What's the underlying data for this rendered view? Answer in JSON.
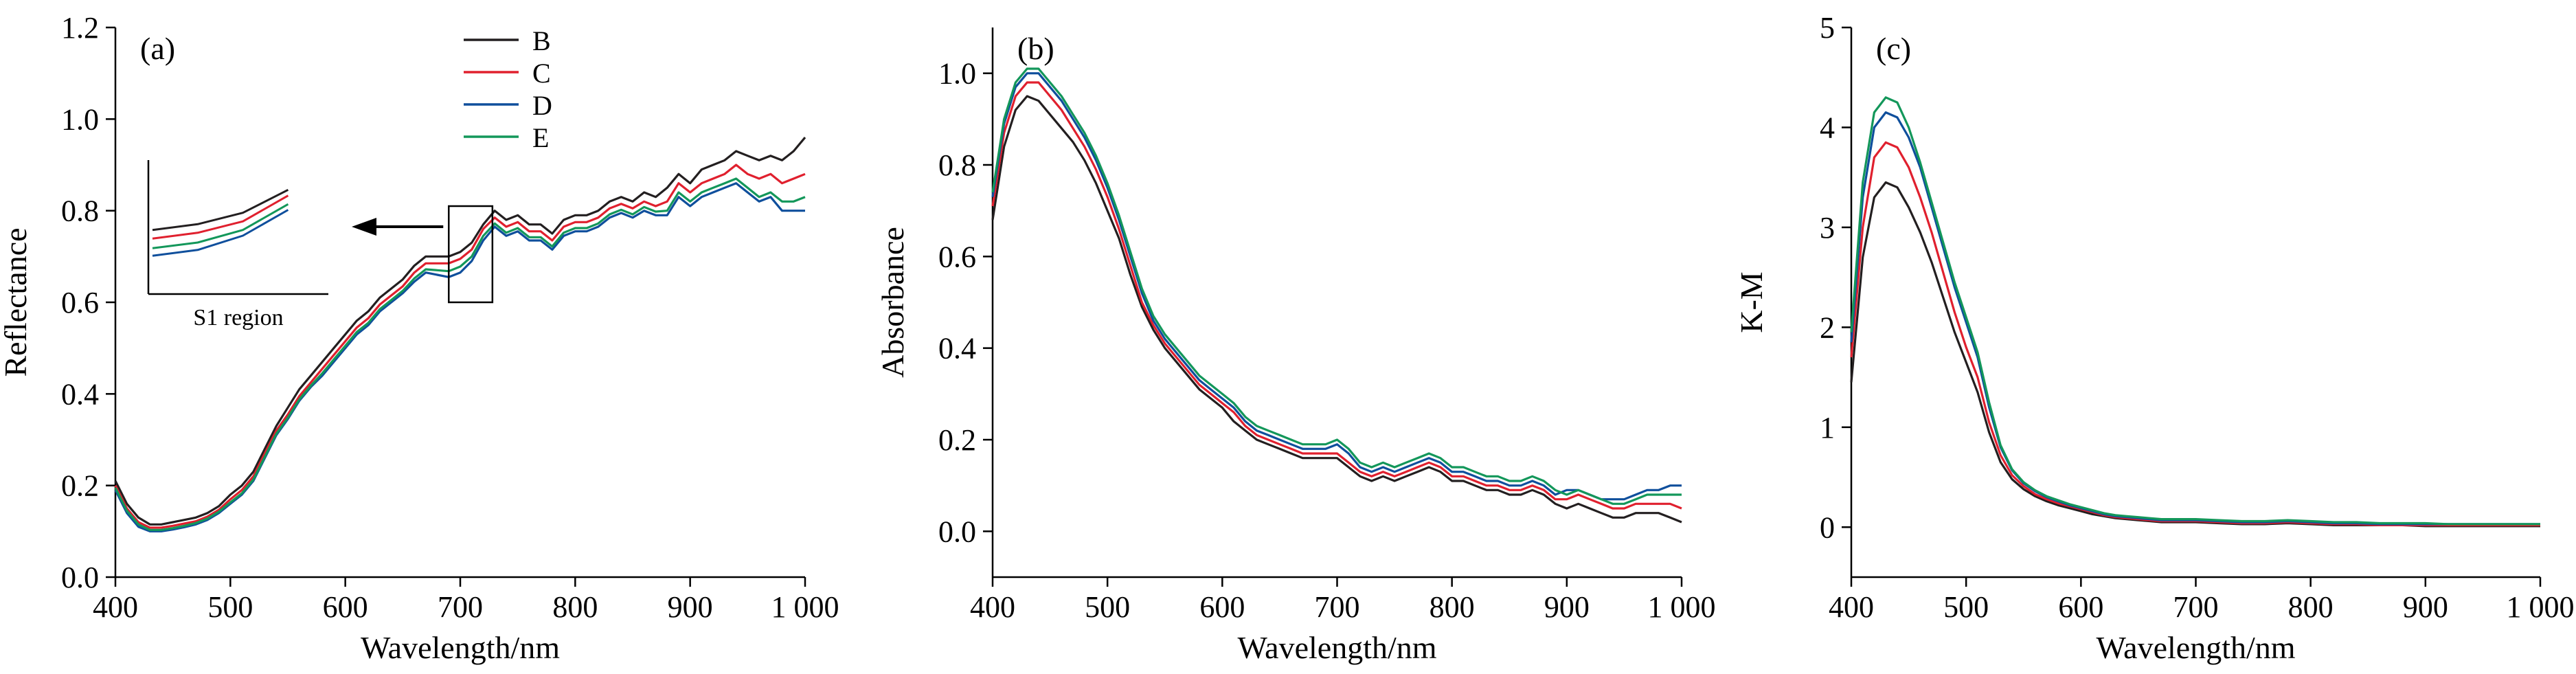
{
  "figure": {
    "colors": {
      "B": "#231f20",
      "C": "#e0202e",
      "D": "#0f4f9c",
      "E": "#13975a"
    }
  },
  "chart_data": [
    {
      "id": "a",
      "type": "line",
      "panel_label": "(a)",
      "xlabel": "Wavelength/nm",
      "ylabel": "Reflectance",
      "xlim": [
        400,
        1000
      ],
      "ylim": [
        0,
        1.2
      ],
      "xticks": [
        400,
        500,
        600,
        700,
        800,
        900,
        1000
      ],
      "xtick_labels": [
        "400",
        "500",
        "600",
        "700",
        "800",
        "900",
        "1 000"
      ],
      "yticks": [
        0,
        0.2,
        0.4,
        0.6,
        0.8,
        1.0,
        1.2
      ],
      "ytick_labels": [
        "0.0",
        "0.2",
        "0.4",
        "0.6",
        "0.8",
        "1.0",
        "1.2"
      ],
      "legend": {
        "placement": "top-center",
        "entries": [
          "B",
          "C",
          "D",
          "E"
        ]
      },
      "inset": {
        "label": "S1 region",
        "x_range": [
          690,
          728
        ],
        "y_range": [
          0.6,
          0.81
        ]
      },
      "x": [
        400,
        410,
        420,
        430,
        440,
        450,
        460,
        470,
        480,
        490,
        500,
        510,
        520,
        530,
        540,
        550,
        560,
        570,
        580,
        590,
        600,
        610,
        620,
        630,
        640,
        650,
        660,
        670,
        680,
        690,
        700,
        710,
        720,
        730,
        740,
        750,
        760,
        770,
        780,
        790,
        800,
        810,
        820,
        830,
        840,
        850,
        860,
        870,
        880,
        890,
        900,
        910,
        920,
        930,
        940,
        950,
        960,
        970,
        980,
        990,
        1000
      ],
      "series": [
        {
          "name": "B",
          "values": [
            0.21,
            0.16,
            0.13,
            0.115,
            0.115,
            0.12,
            0.125,
            0.13,
            0.14,
            0.155,
            0.18,
            0.2,
            0.23,
            0.28,
            0.33,
            0.37,
            0.41,
            0.44,
            0.47,
            0.5,
            0.53,
            0.56,
            0.58,
            0.61,
            0.63,
            0.65,
            0.68,
            0.7,
            0.7,
            0.7,
            0.71,
            0.73,
            0.77,
            0.8,
            0.78,
            0.79,
            0.77,
            0.77,
            0.75,
            0.78,
            0.79,
            0.79,
            0.8,
            0.82,
            0.83,
            0.82,
            0.84,
            0.83,
            0.85,
            0.88,
            0.86,
            0.89,
            0.9,
            0.91,
            0.93,
            0.92,
            0.91,
            0.92,
            0.91,
            0.93,
            0.96
          ]
        },
        {
          "name": "C",
          "values": [
            0.2,
            0.15,
            0.12,
            0.108,
            0.108,
            0.112,
            0.117,
            0.122,
            0.132,
            0.147,
            0.17,
            0.19,
            0.22,
            0.27,
            0.32,
            0.355,
            0.395,
            0.425,
            0.455,
            0.485,
            0.515,
            0.545,
            0.565,
            0.595,
            0.615,
            0.635,
            0.665,
            0.685,
            0.685,
            0.685,
            0.695,
            0.715,
            0.76,
            0.785,
            0.765,
            0.775,
            0.755,
            0.755,
            0.735,
            0.765,
            0.775,
            0.775,
            0.785,
            0.805,
            0.815,
            0.805,
            0.82,
            0.81,
            0.82,
            0.86,
            0.84,
            0.86,
            0.87,
            0.88,
            0.9,
            0.88,
            0.87,
            0.88,
            0.86,
            0.87,
            0.88
          ]
        },
        {
          "name": "D",
          "values": [
            0.19,
            0.14,
            0.11,
            0.1,
            0.1,
            0.104,
            0.109,
            0.115,
            0.125,
            0.14,
            0.16,
            0.18,
            0.21,
            0.26,
            0.31,
            0.345,
            0.385,
            0.415,
            0.44,
            0.47,
            0.5,
            0.53,
            0.55,
            0.58,
            0.6,
            0.62,
            0.645,
            0.665,
            0.66,
            0.655,
            0.665,
            0.69,
            0.735,
            0.765,
            0.745,
            0.755,
            0.735,
            0.735,
            0.715,
            0.745,
            0.755,
            0.755,
            0.765,
            0.785,
            0.795,
            0.785,
            0.8,
            0.79,
            0.79,
            0.83,
            0.81,
            0.83,
            0.84,
            0.85,
            0.86,
            0.84,
            0.82,
            0.83,
            0.8,
            0.8,
            0.8
          ]
        },
        {
          "name": "E",
          "values": [
            0.195,
            0.145,
            0.115,
            0.103,
            0.103,
            0.107,
            0.112,
            0.118,
            0.128,
            0.143,
            0.163,
            0.183,
            0.213,
            0.263,
            0.313,
            0.348,
            0.388,
            0.418,
            0.445,
            0.475,
            0.505,
            0.535,
            0.555,
            0.585,
            0.605,
            0.625,
            0.652,
            0.672,
            0.67,
            0.668,
            0.678,
            0.7,
            0.745,
            0.772,
            0.752,
            0.762,
            0.742,
            0.742,
            0.722,
            0.752,
            0.762,
            0.762,
            0.772,
            0.792,
            0.802,
            0.792,
            0.808,
            0.798,
            0.8,
            0.84,
            0.82,
            0.84,
            0.85,
            0.86,
            0.87,
            0.85,
            0.83,
            0.84,
            0.82,
            0.82,
            0.83
          ]
        }
      ]
    },
    {
      "id": "b",
      "type": "line",
      "panel_label": "(b)",
      "xlabel": "Wavelength/nm",
      "ylabel": "Absorbance",
      "xlim": [
        400,
        1000
      ],
      "ylim": [
        -0.1,
        1.1
      ],
      "xticks": [
        400,
        500,
        600,
        700,
        800,
        900,
        1000
      ],
      "xtick_labels": [
        "400",
        "500",
        "600",
        "700",
        "800",
        "900",
        "1 000"
      ],
      "yticks": [
        0,
        0.2,
        0.4,
        0.6,
        0.8,
        1.0
      ],
      "ytick_labels": [
        "0.0",
        "0.2",
        "0.4",
        "0.6",
        "0.8",
        "1.0"
      ],
      "x": [
        400,
        410,
        420,
        430,
        440,
        450,
        460,
        470,
        480,
        490,
        500,
        510,
        520,
        530,
        540,
        550,
        560,
        570,
        580,
        590,
        600,
        610,
        620,
        630,
        640,
        650,
        660,
        670,
        680,
        690,
        700,
        710,
        720,
        730,
        740,
        750,
        760,
        770,
        780,
        790,
        800,
        810,
        820,
        830,
        840,
        850,
        860,
        870,
        880,
        890,
        900,
        910,
        920,
        930,
        940,
        950,
        960,
        970,
        980,
        990,
        1000
      ],
      "series": [
        {
          "name": "B",
          "values": [
            0.68,
            0.84,
            0.92,
            0.95,
            0.94,
            0.91,
            0.88,
            0.85,
            0.81,
            0.76,
            0.7,
            0.64,
            0.56,
            0.49,
            0.44,
            0.4,
            0.37,
            0.34,
            0.31,
            0.29,
            0.27,
            0.24,
            0.22,
            0.2,
            0.19,
            0.18,
            0.17,
            0.16,
            0.16,
            0.16,
            0.16,
            0.14,
            0.12,
            0.11,
            0.12,
            0.11,
            0.12,
            0.13,
            0.14,
            0.13,
            0.11,
            0.11,
            0.1,
            0.09,
            0.09,
            0.08,
            0.08,
            0.09,
            0.08,
            0.06,
            0.05,
            0.06,
            0.05,
            0.04,
            0.03,
            0.03,
            0.04,
            0.04,
            0.04,
            0.03,
            0.02
          ]
        },
        {
          "name": "C",
          "values": [
            0.71,
            0.87,
            0.95,
            0.98,
            0.98,
            0.95,
            0.92,
            0.88,
            0.84,
            0.79,
            0.73,
            0.66,
            0.58,
            0.5,
            0.45,
            0.41,
            0.38,
            0.35,
            0.32,
            0.3,
            0.28,
            0.26,
            0.23,
            0.21,
            0.2,
            0.19,
            0.18,
            0.17,
            0.17,
            0.17,
            0.17,
            0.15,
            0.13,
            0.12,
            0.13,
            0.12,
            0.13,
            0.14,
            0.15,
            0.14,
            0.12,
            0.12,
            0.11,
            0.1,
            0.1,
            0.09,
            0.09,
            0.1,
            0.09,
            0.07,
            0.07,
            0.08,
            0.07,
            0.06,
            0.05,
            0.05,
            0.06,
            0.06,
            0.06,
            0.06,
            0.05
          ]
        },
        {
          "name": "D",
          "values": [
            0.73,
            0.89,
            0.97,
            1.0,
            1.0,
            0.97,
            0.94,
            0.9,
            0.86,
            0.81,
            0.75,
            0.68,
            0.6,
            0.52,
            0.46,
            0.42,
            0.39,
            0.36,
            0.33,
            0.31,
            0.29,
            0.27,
            0.24,
            0.22,
            0.21,
            0.2,
            0.19,
            0.18,
            0.18,
            0.18,
            0.19,
            0.17,
            0.14,
            0.13,
            0.14,
            0.13,
            0.14,
            0.15,
            0.16,
            0.15,
            0.13,
            0.13,
            0.12,
            0.11,
            0.11,
            0.1,
            0.1,
            0.11,
            0.1,
            0.08,
            0.09,
            0.09,
            0.08,
            0.07,
            0.07,
            0.07,
            0.08,
            0.09,
            0.09,
            0.1,
            0.1
          ]
        },
        {
          "name": "E",
          "values": [
            0.74,
            0.9,
            0.98,
            1.01,
            1.01,
            0.98,
            0.95,
            0.91,
            0.87,
            0.82,
            0.76,
            0.69,
            0.61,
            0.53,
            0.47,
            0.43,
            0.4,
            0.37,
            0.34,
            0.32,
            0.3,
            0.28,
            0.25,
            0.23,
            0.22,
            0.21,
            0.2,
            0.19,
            0.19,
            0.19,
            0.2,
            0.18,
            0.15,
            0.14,
            0.15,
            0.14,
            0.15,
            0.16,
            0.17,
            0.16,
            0.14,
            0.14,
            0.13,
            0.12,
            0.12,
            0.11,
            0.11,
            0.12,
            0.11,
            0.09,
            0.08,
            0.09,
            0.08,
            0.07,
            0.06,
            0.06,
            0.07,
            0.08,
            0.08,
            0.08,
            0.08
          ]
        }
      ]
    },
    {
      "id": "c",
      "type": "line",
      "panel_label": "(c)",
      "xlabel": "Wavelength/nm",
      "ylabel": "K-M",
      "xlim": [
        400,
        1000
      ],
      "ylim": [
        -0.5,
        5
      ],
      "xticks": [
        400,
        500,
        600,
        700,
        800,
        900,
        1000
      ],
      "xtick_labels": [
        "400",
        "500",
        "600",
        "700",
        "800",
        "900",
        "1 000"
      ],
      "yticks": [
        0,
        1,
        2,
        3,
        4,
        5
      ],
      "ytick_labels": [
        "0",
        "1",
        "2",
        "3",
        "4",
        "5"
      ],
      "x": [
        400,
        410,
        420,
        430,
        440,
        450,
        460,
        470,
        480,
        490,
        500,
        510,
        520,
        530,
        540,
        550,
        560,
        570,
        580,
        590,
        600,
        610,
        620,
        630,
        640,
        650,
        660,
        670,
        680,
        690,
        700,
        720,
        740,
        760,
        780,
        800,
        820,
        840,
        860,
        880,
        900,
        920,
        940,
        960,
        980,
        1000
      ],
      "series": [
        {
          "name": "B",
          "values": [
            1.45,
            2.7,
            3.3,
            3.45,
            3.4,
            3.2,
            2.95,
            2.65,
            2.3,
            1.95,
            1.65,
            1.35,
            0.95,
            0.65,
            0.48,
            0.38,
            0.31,
            0.26,
            0.22,
            0.19,
            0.16,
            0.13,
            0.11,
            0.09,
            0.08,
            0.07,
            0.06,
            0.05,
            0.05,
            0.05,
            0.05,
            0.04,
            0.03,
            0.03,
            0.04,
            0.03,
            0.02,
            0.02,
            0.02,
            0.02,
            0.01,
            0.01,
            0.01,
            0.01,
            0.01,
            0.01
          ]
        },
        {
          "name": "C",
          "values": [
            1.7,
            3.0,
            3.7,
            3.85,
            3.8,
            3.6,
            3.3,
            2.95,
            2.55,
            2.15,
            1.8,
            1.5,
            1.05,
            0.72,
            0.52,
            0.41,
            0.33,
            0.28,
            0.24,
            0.21,
            0.18,
            0.15,
            0.12,
            0.1,
            0.09,
            0.08,
            0.07,
            0.06,
            0.06,
            0.06,
            0.06,
            0.05,
            0.04,
            0.04,
            0.05,
            0.04,
            0.03,
            0.03,
            0.02,
            0.02,
            0.02,
            0.02,
            0.02,
            0.02,
            0.02,
            0.02
          ]
        },
        {
          "name": "D",
          "values": [
            1.85,
            3.3,
            4.0,
            4.15,
            4.1,
            3.9,
            3.6,
            3.2,
            2.8,
            2.4,
            2.05,
            1.7,
            1.2,
            0.8,
            0.57,
            0.44,
            0.36,
            0.3,
            0.26,
            0.22,
            0.19,
            0.16,
            0.13,
            0.11,
            0.1,
            0.09,
            0.08,
            0.07,
            0.07,
            0.07,
            0.07,
            0.06,
            0.05,
            0.05,
            0.06,
            0.05,
            0.04,
            0.04,
            0.03,
            0.03,
            0.03,
            0.03,
            0.03,
            0.03,
            0.03,
            0.03
          ]
        },
        {
          "name": "E",
          "values": [
            1.95,
            3.45,
            4.15,
            4.3,
            4.25,
            4.0,
            3.65,
            3.25,
            2.85,
            2.45,
            2.1,
            1.75,
            1.25,
            0.82,
            0.58,
            0.45,
            0.37,
            0.31,
            0.27,
            0.23,
            0.2,
            0.17,
            0.14,
            0.12,
            0.11,
            0.1,
            0.09,
            0.08,
            0.08,
            0.08,
            0.08,
            0.07,
            0.06,
            0.06,
            0.07,
            0.06,
            0.05,
            0.05,
            0.04,
            0.04,
            0.04,
            0.03,
            0.03,
            0.03,
            0.03,
            0.03
          ]
        }
      ]
    }
  ]
}
